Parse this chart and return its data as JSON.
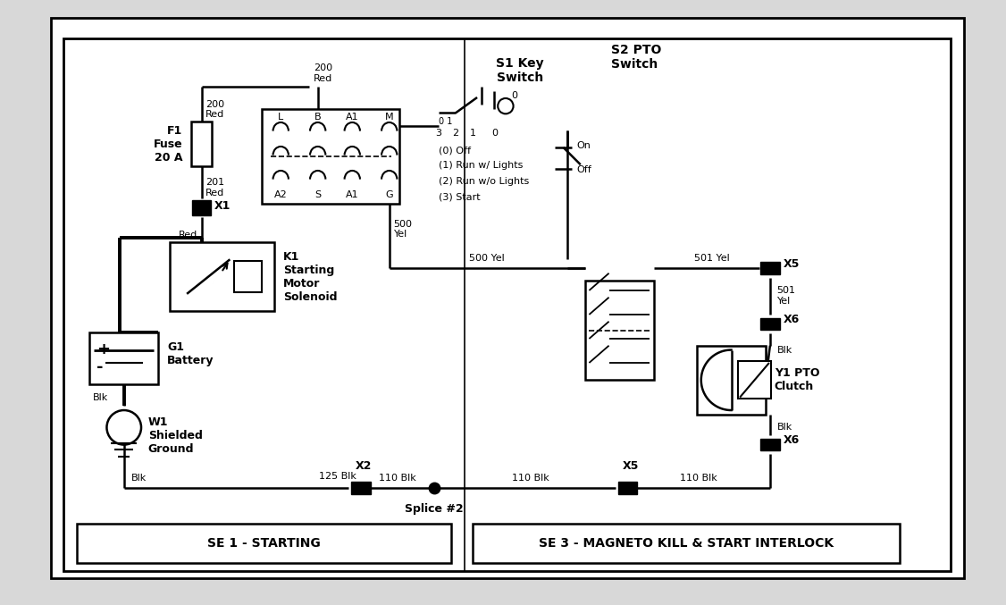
{
  "bg_color": "#d8d8d8",
  "diagram_bg": "#ffffff",
  "line_color": "#000000",
  "thick_lw": 2.8,
  "med_lw": 1.8,
  "thin_lw": 1.3,
  "se1_label": "SE 1 - STARTING",
  "se3_label": "SE 3 - MAGNETO KILL & START INTERLOCK",
  "fuse_label": "F1\nFuse\n20 A",
  "battery_label": "G1\nBattery",
  "ground_label": "W1\nShielded\nGround",
  "k1_label": "K1\nStarting\nMotor\nSolenoid",
  "s1_label": "S1 Key\nSwitch",
  "s2_label": "S2 PTO\nSwitch",
  "y1_label": "Y1 PTO\nClutch"
}
